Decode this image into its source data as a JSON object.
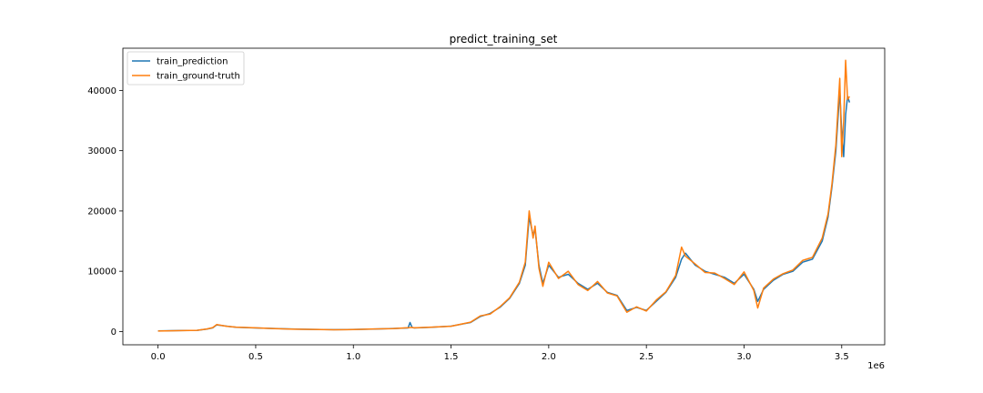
{
  "chart_data": {
    "type": "line",
    "title": "predict_training_set",
    "xlabel": "",
    "ylabel": "",
    "x_offset_label": "1e6",
    "xlim": [
      -0.18,
      3.72
    ],
    "ylim": [
      -2200,
      47000
    ],
    "x_ticks": [
      0.0,
      0.5,
      1.0,
      1.5,
      2.0,
      2.5,
      3.0,
      3.5
    ],
    "x_tick_labels": [
      "0.0",
      "0.5",
      "1.0",
      "1.5",
      "2.0",
      "2.5",
      "3.0",
      "3.5"
    ],
    "y_ticks": [
      0,
      10000,
      20000,
      30000,
      40000
    ],
    "y_tick_labels": [
      "0",
      "10000",
      "20000",
      "30000",
      "40000"
    ],
    "grid": false,
    "legend_position": "top-left",
    "series": [
      {
        "name": "train_prediction",
        "color": "#1f77b4",
        "x": [
          0.0,
          0.1,
          0.2,
          0.25,
          0.28,
          0.3,
          0.35,
          0.4,
          0.5,
          0.6,
          0.7,
          0.8,
          0.9,
          1.0,
          1.1,
          1.2,
          1.28,
          1.29,
          1.3,
          1.31,
          1.4,
          1.5,
          1.6,
          1.65,
          1.7,
          1.75,
          1.8,
          1.85,
          1.88,
          1.9,
          1.92,
          1.93,
          1.95,
          1.97,
          2.0,
          2.05,
          2.1,
          2.15,
          2.2,
          2.25,
          2.3,
          2.35,
          2.4,
          2.45,
          2.5,
          2.55,
          2.6,
          2.65,
          2.68,
          2.7,
          2.75,
          2.8,
          2.85,
          2.9,
          2.95,
          3.0,
          3.05,
          3.07,
          3.1,
          3.15,
          3.2,
          3.25,
          3.3,
          3.35,
          3.4,
          3.43,
          3.45,
          3.47,
          3.49,
          3.5,
          3.51,
          3.52,
          3.53,
          3.54
        ],
        "y": [
          100,
          150,
          200,
          400,
          600,
          1100,
          900,
          700,
          600,
          500,
          400,
          350,
          300,
          350,
          400,
          500,
          600,
          1500,
          700,
          600,
          700,
          900,
          1500,
          2500,
          3000,
          4000,
          5500,
          8000,
          11000,
          19000,
          16000,
          17000,
          11000,
          8000,
          11000,
          9000,
          9500,
          8000,
          7000,
          8000,
          6500,
          6000,
          3500,
          4000,
          3500,
          5000,
          6500,
          9000,
          12000,
          13000,
          11000,
          10000,
          9500,
          9000,
          8000,
          9500,
          7000,
          5000,
          7000,
          8500,
          9500,
          10000,
          11500,
          12000,
          15000,
          19000,
          24000,
          30000,
          40000,
          33000,
          29000,
          36000,
          39000,
          38000
        ]
      },
      {
        "name": "train_ground-truth",
        "color": "#ff7f0e",
        "x": [
          0.0,
          0.1,
          0.2,
          0.25,
          0.28,
          0.3,
          0.35,
          0.4,
          0.5,
          0.6,
          0.7,
          0.8,
          0.9,
          1.0,
          1.1,
          1.2,
          1.28,
          1.3,
          1.31,
          1.4,
          1.5,
          1.6,
          1.65,
          1.7,
          1.75,
          1.8,
          1.85,
          1.88,
          1.9,
          1.92,
          1.93,
          1.95,
          1.97,
          2.0,
          2.05,
          2.1,
          2.15,
          2.2,
          2.25,
          2.3,
          2.35,
          2.4,
          2.45,
          2.5,
          2.55,
          2.6,
          2.65,
          2.68,
          2.7,
          2.75,
          2.8,
          2.85,
          2.9,
          2.95,
          3.0,
          3.05,
          3.07,
          3.1,
          3.15,
          3.2,
          3.25,
          3.3,
          3.35,
          3.4,
          3.43,
          3.45,
          3.47,
          3.49,
          3.5,
          3.51,
          3.52,
          3.53,
          3.54
        ],
        "y": [
          80,
          140,
          190,
          420,
          650,
          1150,
          880,
          720,
          610,
          480,
          390,
          340,
          290,
          330,
          420,
          480,
          620,
          680,
          610,
          720,
          880,
          1550,
          2600,
          2900,
          4100,
          5600,
          8200,
          11500,
          20000,
          15500,
          17500,
          10500,
          7500,
          11500,
          8800,
          10000,
          7800,
          6800,
          8300,
          6400,
          5900,
          3200,
          4100,
          3400,
          5200,
          6600,
          9300,
          14000,
          12500,
          11200,
          9800,
          9700,
          8800,
          7800,
          9900,
          6800,
          3900,
          7200,
          8700,
          9600,
          10200,
          11800,
          12300,
          15500,
          19500,
          24500,
          31000,
          42000,
          29000,
          35000,
          45000,
          38500,
          39000
        ]
      }
    ]
  }
}
